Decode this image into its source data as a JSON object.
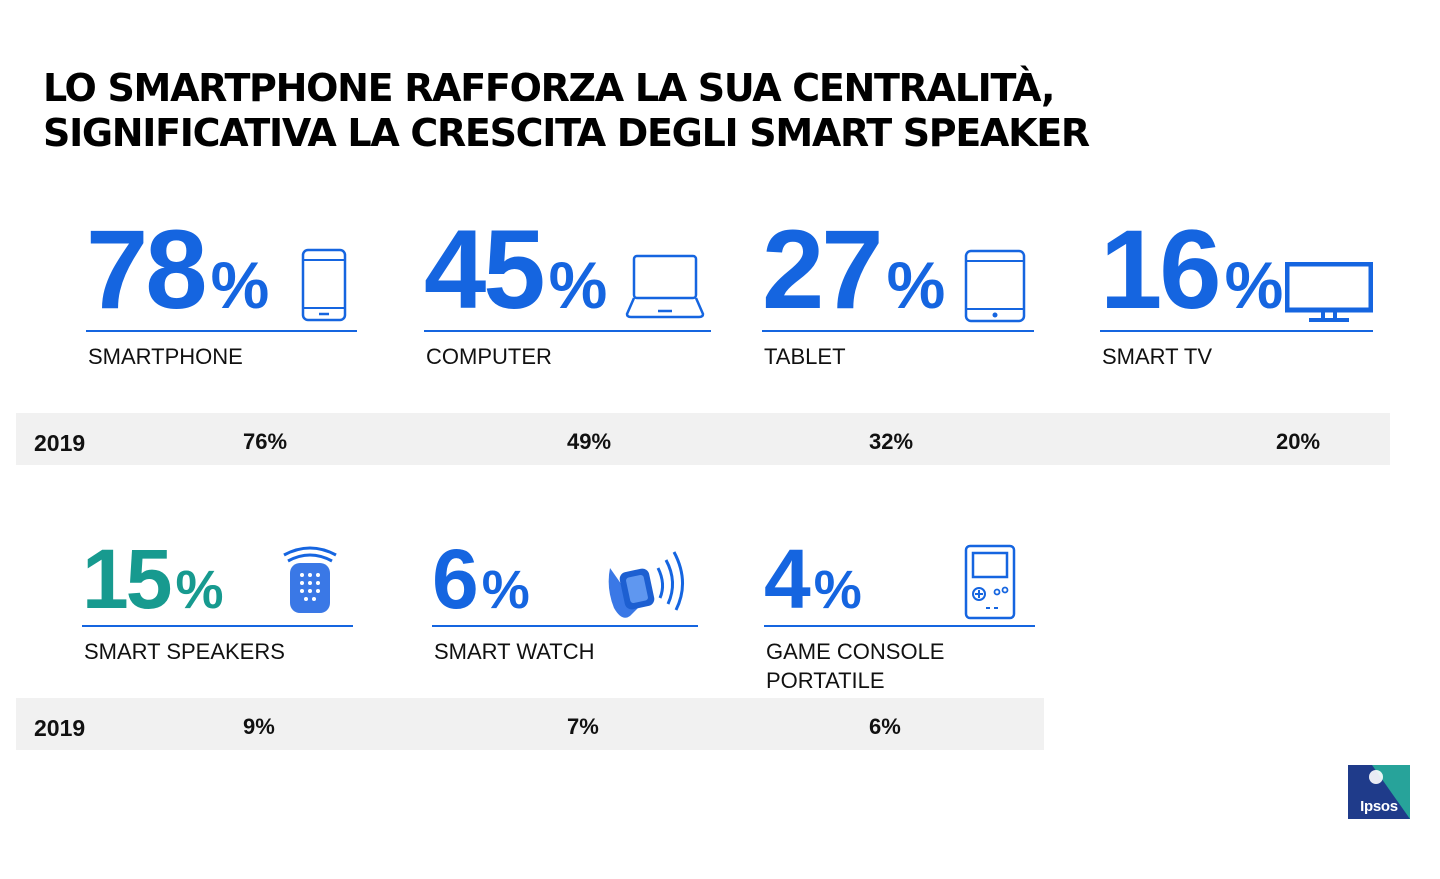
{
  "title": {
    "line1": "LO SMARTPHONE RAFFORZA LA SUA CENTRALITÀ,",
    "line2": "SIGNIFICATIVA LA CRESCITA DEGLI SMART SPEAKER"
  },
  "percent_sign": "%",
  "colors": {
    "blue": "#1565e0",
    "teal": "#179a8f",
    "band": "#f1f1f1"
  },
  "row1": [
    {
      "value": "78",
      "label": "SMARTPHONE",
      "icon": "smartphone-icon",
      "y2019": "76%"
    },
    {
      "value": "45",
      "label": "COMPUTER",
      "icon": "laptop-icon",
      "y2019": "49%"
    },
    {
      "value": "27",
      "label": "TABLET",
      "icon": "tablet-icon",
      "y2019": "32%"
    },
    {
      "value": "16",
      "label": "SMART TV",
      "icon": "tv-icon",
      "y2019": "20%"
    }
  ],
  "row2": [
    {
      "value": "15",
      "label": "SMART SPEAKERS",
      "icon": "smart-speaker-icon",
      "y2019": "9%"
    },
    {
      "value": "6",
      "label": "SMART WATCH",
      "icon": "smartwatch-icon",
      "y2019": "7%"
    },
    {
      "value": "4",
      "label_line1": "GAME CONSOLE",
      "label_line2": "PORTATILE",
      "icon": "handheld-console-icon",
      "y2019": "6%"
    }
  ],
  "year": "2019",
  "logo": "Ipsos"
}
